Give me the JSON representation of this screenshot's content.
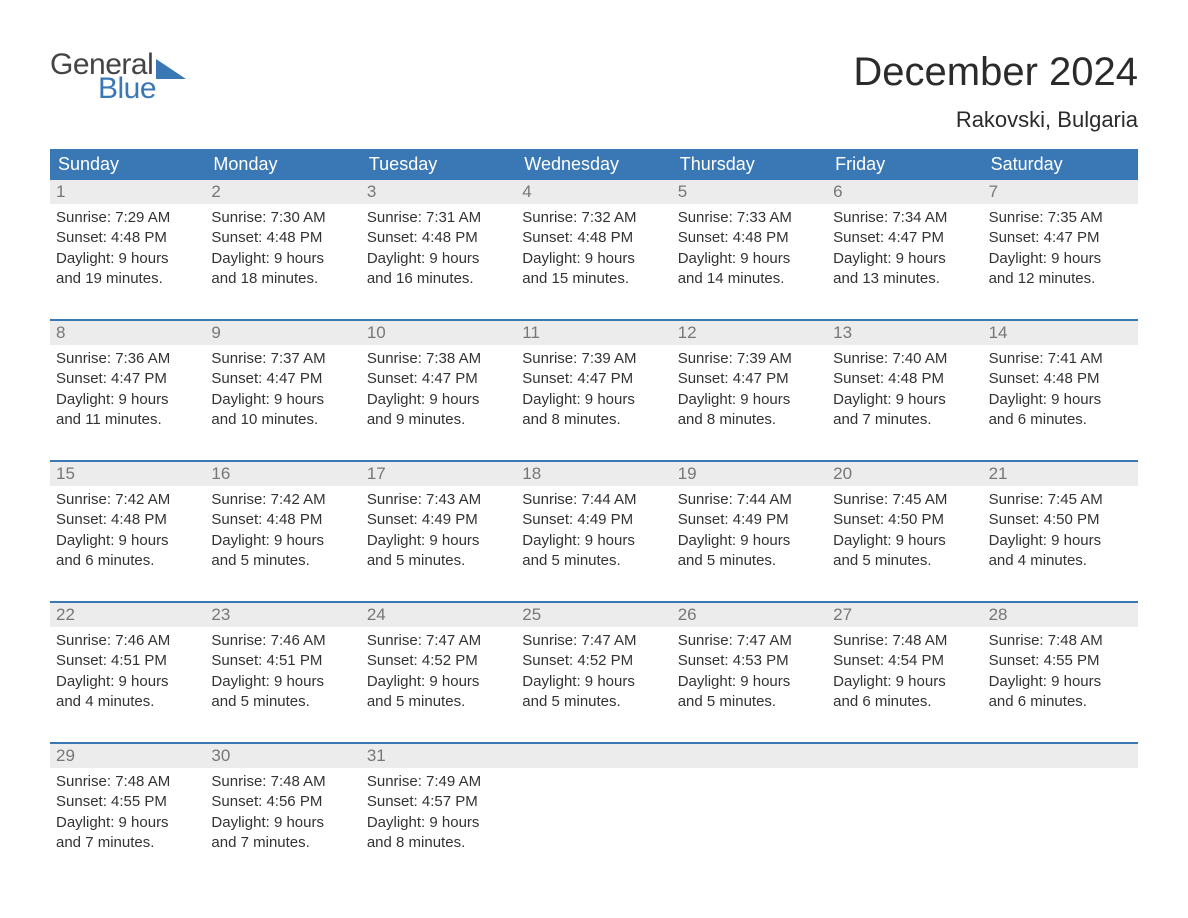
{
  "brand": {
    "word1": "General",
    "word2": "Blue"
  },
  "title": "December 2024",
  "location": "Rakovski, Bulgaria",
  "colors": {
    "header_bg": "#3a78b5",
    "header_text": "#ffffff",
    "daynum_bg": "#ececec",
    "daynum_text": "#777777",
    "body_text": "#333333",
    "page_bg": "#ffffff",
    "brand_blue": "#3a78b5",
    "brand_dark": "#444444"
  },
  "typography": {
    "title_fontsize": 40,
    "location_fontsize": 22,
    "dow_fontsize": 18,
    "cell_fontsize": 15
  },
  "days_of_week": [
    "Sunday",
    "Monday",
    "Tuesday",
    "Wednesday",
    "Thursday",
    "Friday",
    "Saturday"
  ],
  "weeks": [
    [
      {
        "n": "1",
        "sr": "Sunrise: 7:29 AM",
        "ss": "Sunset: 4:48 PM",
        "d1": "Daylight: 9 hours",
        "d2": "and 19 minutes."
      },
      {
        "n": "2",
        "sr": "Sunrise: 7:30 AM",
        "ss": "Sunset: 4:48 PM",
        "d1": "Daylight: 9 hours",
        "d2": "and 18 minutes."
      },
      {
        "n": "3",
        "sr": "Sunrise: 7:31 AM",
        "ss": "Sunset: 4:48 PM",
        "d1": "Daylight: 9 hours",
        "d2": "and 16 minutes."
      },
      {
        "n": "4",
        "sr": "Sunrise: 7:32 AM",
        "ss": "Sunset: 4:48 PM",
        "d1": "Daylight: 9 hours",
        "d2": "and 15 minutes."
      },
      {
        "n": "5",
        "sr": "Sunrise: 7:33 AM",
        "ss": "Sunset: 4:48 PM",
        "d1": "Daylight: 9 hours",
        "d2": "and 14 minutes."
      },
      {
        "n": "6",
        "sr": "Sunrise: 7:34 AM",
        "ss": "Sunset: 4:47 PM",
        "d1": "Daylight: 9 hours",
        "d2": "and 13 minutes."
      },
      {
        "n": "7",
        "sr": "Sunrise: 7:35 AM",
        "ss": "Sunset: 4:47 PM",
        "d1": "Daylight: 9 hours",
        "d2": "and 12 minutes."
      }
    ],
    [
      {
        "n": "8",
        "sr": "Sunrise: 7:36 AM",
        "ss": "Sunset: 4:47 PM",
        "d1": "Daylight: 9 hours",
        "d2": "and 11 minutes."
      },
      {
        "n": "9",
        "sr": "Sunrise: 7:37 AM",
        "ss": "Sunset: 4:47 PM",
        "d1": "Daylight: 9 hours",
        "d2": "and 10 minutes."
      },
      {
        "n": "10",
        "sr": "Sunrise: 7:38 AM",
        "ss": "Sunset: 4:47 PM",
        "d1": "Daylight: 9 hours",
        "d2": "and 9 minutes."
      },
      {
        "n": "11",
        "sr": "Sunrise: 7:39 AM",
        "ss": "Sunset: 4:47 PM",
        "d1": "Daylight: 9 hours",
        "d2": "and 8 minutes."
      },
      {
        "n": "12",
        "sr": "Sunrise: 7:39 AM",
        "ss": "Sunset: 4:47 PM",
        "d1": "Daylight: 9 hours",
        "d2": "and 8 minutes."
      },
      {
        "n": "13",
        "sr": "Sunrise: 7:40 AM",
        "ss": "Sunset: 4:48 PM",
        "d1": "Daylight: 9 hours",
        "d2": "and 7 minutes."
      },
      {
        "n": "14",
        "sr": "Sunrise: 7:41 AM",
        "ss": "Sunset: 4:48 PM",
        "d1": "Daylight: 9 hours",
        "d2": "and 6 minutes."
      }
    ],
    [
      {
        "n": "15",
        "sr": "Sunrise: 7:42 AM",
        "ss": "Sunset: 4:48 PM",
        "d1": "Daylight: 9 hours",
        "d2": "and 6 minutes."
      },
      {
        "n": "16",
        "sr": "Sunrise: 7:42 AM",
        "ss": "Sunset: 4:48 PM",
        "d1": "Daylight: 9 hours",
        "d2": "and 5 minutes."
      },
      {
        "n": "17",
        "sr": "Sunrise: 7:43 AM",
        "ss": "Sunset: 4:49 PM",
        "d1": "Daylight: 9 hours",
        "d2": "and 5 minutes."
      },
      {
        "n": "18",
        "sr": "Sunrise: 7:44 AM",
        "ss": "Sunset: 4:49 PM",
        "d1": "Daylight: 9 hours",
        "d2": "and 5 minutes."
      },
      {
        "n": "19",
        "sr": "Sunrise: 7:44 AM",
        "ss": "Sunset: 4:49 PM",
        "d1": "Daylight: 9 hours",
        "d2": "and 5 minutes."
      },
      {
        "n": "20",
        "sr": "Sunrise: 7:45 AM",
        "ss": "Sunset: 4:50 PM",
        "d1": "Daylight: 9 hours",
        "d2": "and 5 minutes."
      },
      {
        "n": "21",
        "sr": "Sunrise: 7:45 AM",
        "ss": "Sunset: 4:50 PM",
        "d1": "Daylight: 9 hours",
        "d2": "and 4 minutes."
      }
    ],
    [
      {
        "n": "22",
        "sr": "Sunrise: 7:46 AM",
        "ss": "Sunset: 4:51 PM",
        "d1": "Daylight: 9 hours",
        "d2": "and 4 minutes."
      },
      {
        "n": "23",
        "sr": "Sunrise: 7:46 AM",
        "ss": "Sunset: 4:51 PM",
        "d1": "Daylight: 9 hours",
        "d2": "and 5 minutes."
      },
      {
        "n": "24",
        "sr": "Sunrise: 7:47 AM",
        "ss": "Sunset: 4:52 PM",
        "d1": "Daylight: 9 hours",
        "d2": "and 5 minutes."
      },
      {
        "n": "25",
        "sr": "Sunrise: 7:47 AM",
        "ss": "Sunset: 4:52 PM",
        "d1": "Daylight: 9 hours",
        "d2": "and 5 minutes."
      },
      {
        "n": "26",
        "sr": "Sunrise: 7:47 AM",
        "ss": "Sunset: 4:53 PM",
        "d1": "Daylight: 9 hours",
        "d2": "and 5 minutes."
      },
      {
        "n": "27",
        "sr": "Sunrise: 7:48 AM",
        "ss": "Sunset: 4:54 PM",
        "d1": "Daylight: 9 hours",
        "d2": "and 6 minutes."
      },
      {
        "n": "28",
        "sr": "Sunrise: 7:48 AM",
        "ss": "Sunset: 4:55 PM",
        "d1": "Daylight: 9 hours",
        "d2": "and 6 minutes."
      }
    ],
    [
      {
        "n": "29",
        "sr": "Sunrise: 7:48 AM",
        "ss": "Sunset: 4:55 PM",
        "d1": "Daylight: 9 hours",
        "d2": "and 7 minutes."
      },
      {
        "n": "30",
        "sr": "Sunrise: 7:48 AM",
        "ss": "Sunset: 4:56 PM",
        "d1": "Daylight: 9 hours",
        "d2": "and 7 minutes."
      },
      {
        "n": "31",
        "sr": "Sunrise: 7:49 AM",
        "ss": "Sunset: 4:57 PM",
        "d1": "Daylight: 9 hours",
        "d2": "and 8 minutes."
      },
      null,
      null,
      null,
      null
    ]
  ]
}
